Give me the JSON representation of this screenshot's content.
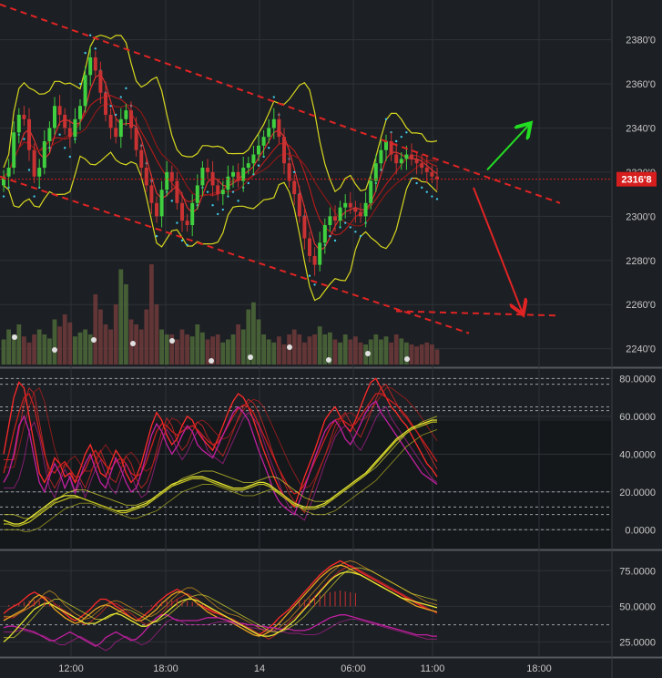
{
  "colors": {
    "background": "#1c1f23",
    "grid": "#2e3338",
    "bull_candle": "#3fcf3f",
    "bear_candle": "#c83232",
    "channel": "#e02424",
    "bollinger": "#d8d820",
    "parabolic_sar": "#40c8e8",
    "arrow_up": "#22dd22",
    "arrow_down": "#e02424",
    "price_tag": "#d61e1e"
  },
  "chart_data": [
    {
      "type": "candlestick",
      "panel": "price",
      "ylim": [
        2232,
        2398
      ],
      "y_ticks": [
        {
          "value": 2380,
          "label": "2380'0"
        },
        {
          "value": 2360,
          "label": "2360'0"
        },
        {
          "value": 2340,
          "label": "2340'0"
        },
        {
          "value": 2320,
          "label": "2320'0"
        },
        {
          "value": 2300,
          "label": "2300'0"
        },
        {
          "value": 2280,
          "label": "2280'0"
        },
        {
          "value": 2260,
          "label": "2260'0"
        },
        {
          "value": 2240,
          "label": "2240'0"
        }
      ],
      "last_price": {
        "value": 2316.8,
        "label": "2316'8"
      },
      "close": [
        2318,
        2322,
        2338,
        2346,
        2344,
        2330,
        2318,
        2322,
        2334,
        2340,
        2350,
        2346,
        2340,
        2336,
        2344,
        2350,
        2364,
        2372,
        2366,
        2356,
        2346,
        2340,
        2336,
        2344,
        2348,
        2340,
        2330,
        2322,
        2314,
        2306,
        2300,
        2312,
        2320,
        2316,
        2306,
        2298,
        2296,
        2306,
        2314,
        2322,
        2320,
        2314,
        2310,
        2312,
        2318,
        2320,
        2316,
        2322,
        2324,
        2328,
        2332,
        2336,
        2340,
        2344,
        2336,
        2324,
        2316,
        2310,
        2300,
        2290,
        2282,
        2278,
        2288,
        2296,
        2300,
        2298,
        2304,
        2306,
        2304,
        2302,
        2300,
        2306,
        2316,
        2324,
        2330,
        2334,
        2328,
        2324,
        2326,
        2328,
        2326,
        2324,
        2322,
        2320,
        2318,
        2316.8
      ],
      "volume_scale": "relative",
      "volume": [
        0.25,
        0.35,
        0.3,
        0.4,
        0.28,
        0.22,
        0.3,
        0.35,
        0.3,
        0.26,
        0.45,
        0.38,
        0.5,
        0.42,
        0.28,
        0.32,
        0.35,
        0.3,
        0.7,
        0.55,
        0.4,
        0.35,
        0.6,
        0.95,
        0.8,
        0.45,
        0.4,
        0.35,
        0.55,
        1.0,
        0.6,
        0.35,
        0.3,
        0.3,
        0.25,
        0.35,
        0.3,
        0.28,
        0.4,
        0.32,
        0.25,
        0.28,
        0.3,
        0.22,
        0.25,
        0.3,
        0.4,
        0.35,
        0.55,
        0.62,
        0.45,
        0.3,
        0.25,
        0.22,
        0.28,
        0.2,
        0.3,
        0.35,
        0.3,
        0.22,
        0.28,
        0.3,
        0.38,
        0.3,
        0.32,
        0.25,
        0.22,
        0.3,
        0.25,
        0.28,
        0.22,
        0.2,
        0.25,
        0.3,
        0.25,
        0.28,
        0.22,
        0.3,
        0.26,
        0.22,
        0.2,
        0.18,
        0.2,
        0.22,
        0.2,
        0.15
      ]
    },
    {
      "type": "line",
      "panel": "oscillator_1",
      "ylim": [
        -10,
        85
      ],
      "y_ticks": [
        {
          "value": 80,
          "label": "80.0000"
        },
        {
          "value": 60,
          "label": "60.0000"
        },
        {
          "value": 40,
          "label": "40.0000"
        },
        {
          "value": 20,
          "label": "20.0000"
        },
        {
          "value": 0,
          "label": "0.0000"
        }
      ],
      "reference_levels": [
        80,
        77,
        65,
        63,
        20,
        12,
        8,
        0
      ],
      "series": [
        {
          "values": [
            40,
            55,
            70,
            78,
            75,
            60,
            45,
            30,
            25,
            30,
            38,
            35,
            28,
            30,
            25,
            32,
            40,
            45,
            38,
            30,
            28,
            35,
            42,
            38,
            30,
            25,
            28,
            35,
            45,
            55,
            62,
            58,
            50,
            45,
            48,
            55,
            60,
            58,
            52,
            48,
            45,
            42,
            48,
            55,
            62,
            68,
            72,
            70,
            65,
            58,
            50,
            42,
            35,
            28,
            22,
            18,
            15,
            12,
            20,
            28,
            35,
            42,
            50,
            58,
            62,
            65,
            60,
            55,
            52,
            58,
            65,
            72,
            78,
            80,
            75,
            70,
            65,
            62,
            58,
            55,
            50,
            45,
            40,
            35,
            32,
            28
          ],
          "color": "#ff2a2a"
        },
        {
          "values": [
            30,
            40,
            52,
            62,
            70,
            72,
            65,
            52,
            40,
            32,
            30,
            34,
            36,
            32,
            28,
            28,
            32,
            38,
            42,
            38,
            34,
            32,
            36,
            38,
            35,
            30,
            28,
            30,
            36,
            44,
            52,
            56,
            55,
            52,
            50,
            52,
            54,
            55,
            53,
            50,
            47,
            45,
            46,
            50,
            55,
            60,
            64,
            66,
            65,
            62,
            56,
            50,
            44,
            38,
            32,
            27,
            22,
            19,
            20,
            24,
            30,
            36,
            42,
            48,
            54,
            58,
            59,
            57,
            55,
            56,
            60,
            64,
            68,
            72,
            72,
            70,
            68,
            66,
            63,
            60,
            56,
            52,
            48,
            44,
            40,
            36
          ],
          "color": "#c81e1e"
        },
        {
          "values": [
            25,
            30,
            40,
            55,
            60,
            52,
            38,
            25,
            20,
            28,
            35,
            30,
            22,
            28,
            20,
            28,
            35,
            40,
            32,
            25,
            22,
            30,
            38,
            32,
            25,
            20,
            22,
            30,
            40,
            50,
            56,
            52,
            45,
            40,
            44,
            50,
            55,
            52,
            45,
            42,
            40,
            38,
            44,
            50,
            56,
            62,
            65,
            62,
            58,
            50,
            42,
            35,
            28,
            20,
            15,
            12,
            10,
            8,
            15,
            22,
            30,
            38,
            45,
            52,
            56,
            58,
            54,
            48,
            45,
            50,
            56,
            62,
            66,
            68,
            62,
            58,
            54,
            50,
            46,
            42,
            38,
            34,
            30,
            28,
            26,
            24
          ],
          "color": "#c020a0"
        },
        {
          "values": [
            5,
            4,
            3,
            3,
            4,
            6,
            8,
            10,
            12,
            14,
            16,
            17,
            18,
            18,
            18,
            17,
            16,
            15,
            14,
            13,
            12,
            11,
            10,
            10,
            10,
            11,
            12,
            13,
            14,
            16,
            18,
            20,
            22,
            24,
            25,
            26,
            27,
            28,
            28,
            28,
            27,
            26,
            25,
            24,
            23,
            22,
            22,
            22,
            23,
            24,
            25,
            25,
            24,
            22,
            20,
            18,
            16,
            14,
            13,
            12,
            12,
            12,
            13,
            14,
            16,
            18,
            20,
            22,
            24,
            26,
            28,
            30,
            33,
            36,
            39,
            42,
            45,
            48,
            50,
            52,
            54,
            55,
            56,
            57,
            58,
            58
          ],
          "color": "#e6e630"
        },
        {
          "values": [
            3,
            3,
            2,
            2,
            3,
            4,
            6,
            8,
            10,
            12,
            14,
            15,
            16,
            17,
            17,
            17,
            16,
            15,
            14,
            13,
            12,
            11,
            10,
            9,
            9,
            10,
            11,
            12,
            13,
            15,
            17,
            19,
            21,
            23,
            24,
            25,
            26,
            27,
            27,
            27,
            26,
            25,
            24,
            23,
            22,
            21,
            21,
            21,
            22,
            23,
            24,
            24,
            23,
            21,
            19,
            17,
            15,
            13,
            12,
            11,
            11,
            11,
            12,
            13,
            15,
            17,
            19,
            21,
            23,
            25,
            27,
            29,
            32,
            35,
            38,
            41,
            44,
            47,
            49,
            51,
            53,
            54,
            55,
            56,
            57,
            57
          ],
          "color": "#b8b820"
        }
      ]
    },
    {
      "type": "line",
      "panel": "oscillator_2",
      "ylim": [
        15,
        88
      ],
      "y_ticks": [
        {
          "value": 75,
          "label": "75.0000"
        },
        {
          "value": 50,
          "label": "50.0000"
        },
        {
          "value": 25,
          "label": "25.0000"
        }
      ],
      "reference_levels": [
        37
      ],
      "series": [
        {
          "values": [
            45,
            48,
            50,
            52,
            55,
            58,
            60,
            58,
            55,
            52,
            50,
            48,
            45,
            42,
            40,
            42,
            45,
            48,
            52,
            55,
            55,
            53,
            50,
            48,
            45,
            42,
            40,
            42,
            45,
            48,
            52,
            55,
            58,
            60,
            62,
            60,
            58,
            55,
            52,
            50,
            48,
            46,
            45,
            44,
            42,
            40,
            38,
            36,
            34,
            32,
            30,
            32,
            35,
            38,
            42,
            45,
            48,
            52,
            56,
            60,
            64,
            68,
            72,
            75,
            78,
            80,
            82,
            80,
            78,
            76,
            74,
            72,
            70,
            68,
            66,
            64,
            62,
            60,
            58,
            56,
            54,
            52,
            50,
            48,
            47,
            46
          ],
          "color": "#ff2a2a"
        },
        {
          "values": [
            40,
            42,
            44,
            46,
            48,
            52,
            56,
            58,
            56,
            52,
            48,
            45,
            42,
            40,
            38,
            39,
            42,
            45,
            48,
            50,
            51,
            50,
            48,
            46,
            44,
            42,
            40,
            40,
            42,
            45,
            48,
            52,
            55,
            58,
            60,
            60,
            58,
            55,
            52,
            49,
            46,
            44,
            42,
            41,
            40,
            38,
            36,
            34,
            32,
            30,
            29,
            30,
            32,
            35,
            38,
            42,
            46,
            50,
            54,
            58,
            62,
            66,
            70,
            73,
            76,
            78,
            79,
            78,
            76,
            74,
            72,
            70,
            68,
            66,
            64,
            62,
            60,
            58,
            56,
            54,
            52,
            50,
            49,
            48,
            47,
            46
          ],
          "color": "#e8a020"
        },
        {
          "values": [
            35,
            36,
            36,
            35,
            34,
            33,
            32,
            30,
            28,
            26,
            26,
            28,
            30,
            32,
            30,
            28,
            26,
            24,
            22,
            24,
            28,
            30,
            32,
            30,
            28,
            26,
            27,
            30,
            34,
            38,
            42,
            44,
            44,
            42,
            40,
            40,
            40,
            40,
            40,
            41,
            42,
            42,
            42,
            41,
            40,
            39,
            38,
            38,
            37,
            37,
            36,
            36,
            35,
            35,
            34,
            34,
            34,
            33,
            33,
            33,
            34,
            36,
            38,
            40,
            42,
            43,
            44,
            44,
            43,
            42,
            41,
            40,
            39,
            38,
            37,
            36,
            35,
            34,
            33,
            32,
            31,
            30,
            30,
            30,
            29,
            29
          ],
          "color": "#c020a0"
        },
        {
          "values": [
            25,
            28,
            32,
            36,
            40,
            44,
            48,
            50,
            52,
            52,
            50,
            48,
            46,
            44,
            42,
            40,
            38,
            38,
            38,
            40,
            42,
            44,
            45,
            44,
            42,
            40,
            38,
            36,
            36,
            38,
            40,
            43,
            46,
            49,
            52,
            54,
            55,
            55,
            54,
            52,
            50,
            48,
            46,
            44,
            42,
            40,
            38,
            36,
            34,
            32,
            30,
            29,
            29,
            30,
            32,
            34,
            37,
            40,
            44,
            48,
            52,
            56,
            60,
            64,
            68,
            71,
            73,
            74,
            74,
            73,
            72,
            70,
            68,
            66,
            64,
            62,
            60,
            58,
            56,
            55,
            54,
            53,
            52,
            51,
            50,
            49
          ],
          "color": "#e6e630"
        }
      ]
    }
  ],
  "x_axis": {
    "tick_labels": [
      "12:00",
      "18:00",
      "14",
      "06:00",
      "11:00",
      "18:00"
    ]
  }
}
